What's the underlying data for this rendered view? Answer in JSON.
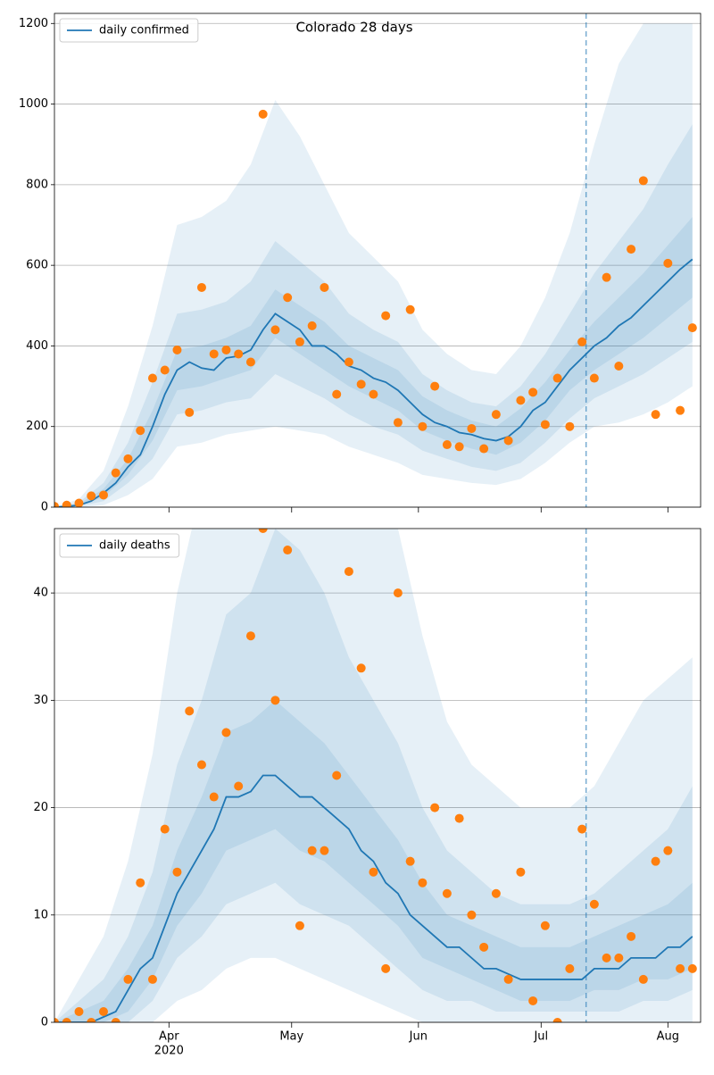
{
  "chart_data": [
    {
      "type": "line",
      "title": "Colorado 28 days",
      "x": [
        64,
        67,
        70,
        73,
        76,
        79,
        82,
        85,
        88,
        91,
        94,
        97,
        100,
        103,
        106,
        109,
        112,
        115,
        118,
        121,
        124,
        127,
        130,
        133,
        136,
        139,
        142,
        145,
        148,
        151,
        154,
        157,
        160,
        163,
        166,
        169,
        172,
        175,
        178,
        181,
        184,
        187,
        190,
        193,
        196,
        199,
        202,
        205,
        208,
        211,
        214,
        217,
        220
      ],
      "series": [
        {
          "name": "daily confirmed",
          "color": "#1f77b4",
          "values": [
            0,
            2,
            5,
            15,
            35,
            60,
            100,
            130,
            200,
            280,
            340,
            360,
            345,
            340,
            370,
            375,
            390,
            440,
            480,
            460,
            440,
            400,
            400,
            380,
            350,
            340,
            320,
            310,
            290,
            260,
            230,
            210,
            200,
            185,
            180,
            170,
            165,
            175,
            200,
            240,
            260,
            300,
            340,
            370,
            400,
            420,
            450,
            470,
            500,
            530,
            560,
            590,
            615
          ]
        }
      ],
      "points": {
        "color": "#ff7f0e",
        "values": [
          2,
          5,
          10,
          28,
          30,
          85,
          120,
          190,
          320,
          340,
          390,
          235,
          545,
          380,
          390,
          380,
          360,
          975,
          440,
          520,
          410,
          450,
          545,
          280,
          360,
          305,
          280,
          475,
          210,
          490,
          200,
          300,
          155,
          150,
          195,
          145,
          230,
          165,
          265,
          285,
          205,
          320,
          200,
          410,
          320,
          570,
          350,
          640,
          810,
          230,
          605,
          240,
          445
        ]
      },
      "band_x": [
        64,
        70,
        76,
        82,
        88,
        94,
        100,
        106,
        112,
        118,
        124,
        130,
        136,
        142,
        148,
        154,
        160,
        166,
        172,
        178,
        184,
        190,
        196,
        202,
        208,
        214,
        220
      ],
      "bands": [
        {
          "lo": [
            0,
            0,
            5,
            30,
            70,
            150,
            160,
            180,
            190,
            200,
            190,
            180,
            150,
            130,
            110,
            80,
            70,
            60,
            55,
            70,
            110,
            160,
            200,
            210,
            230,
            260,
            300
          ],
          "hi": [
            0,
            20,
            90,
            250,
            450,
            700,
            720,
            760,
            850,
            1010,
            920,
            800,
            680,
            620,
            560,
            440,
            380,
            340,
            330,
            400,
            520,
            680,
            900,
            1100,
            1200,
            1200,
            1200
          ]
        },
        {
          "lo": [
            0,
            2,
            15,
            60,
            120,
            230,
            240,
            260,
            270,
            330,
            300,
            270,
            230,
            200,
            180,
            140,
            120,
            100,
            90,
            110,
            160,
            220,
            270,
            300,
            330,
            370,
            410
          ],
          "hi": [
            0,
            12,
            60,
            160,
            310,
            480,
            490,
            510,
            560,
            660,
            610,
            560,
            480,
            440,
            410,
            330,
            290,
            260,
            250,
            300,
            380,
            480,
            580,
            660,
            740,
            850,
            950
          ]
        },
        {
          "lo": [
            0,
            3,
            25,
            80,
            165,
            290,
            300,
            320,
            340,
            420,
            380,
            340,
            300,
            270,
            240,
            190,
            165,
            145,
            130,
            160,
            215,
            290,
            340,
            380,
            420,
            470,
            520
          ],
          "hi": [
            0,
            8,
            45,
            120,
            240,
            390,
            400,
            420,
            450,
            540,
            500,
            460,
            400,
            370,
            340,
            275,
            240,
            215,
            200,
            245,
            310,
            390,
            460,
            520,
            580,
            650,
            720
          ]
        }
      ],
      "band_color": "#1f77b4",
      "forecast_start": 194,
      "xlim": [
        64,
        222
      ],
      "xticks": [
        92,
        122,
        153,
        183,
        214
      ],
      "ylim": [
        0,
        1225
      ],
      "yticks": [
        0,
        200,
        400,
        600,
        800,
        1000,
        1200
      ],
      "grid": true,
      "legend": "upper left"
    },
    {
      "type": "line",
      "x": [
        64,
        67,
        70,
        73,
        76,
        79,
        82,
        85,
        88,
        91,
        94,
        97,
        100,
        103,
        106,
        109,
        112,
        115,
        118,
        121,
        124,
        127,
        130,
        133,
        136,
        139,
        142,
        145,
        148,
        151,
        154,
        157,
        160,
        163,
        166,
        169,
        172,
        175,
        178,
        181,
        184,
        187,
        190,
        193,
        196,
        199,
        202,
        205,
        208,
        211,
        214,
        217,
        220
      ],
      "series": [
        {
          "name": "daily deaths",
          "color": "#1f77b4",
          "values": [
            0,
            0,
            0,
            0,
            0.5,
            1,
            3,
            5,
            6,
            9,
            12,
            14,
            16,
            18,
            21,
            21,
            21.5,
            23,
            23,
            22,
            21,
            21,
            20,
            19,
            18,
            16,
            15,
            13,
            12,
            10,
            9,
            8,
            7,
            7,
            6,
            5,
            5,
            4.5,
            4,
            4,
            4,
            4,
            4,
            4,
            5,
            5,
            5,
            6,
            6,
            6,
            7,
            7,
            8
          ]
        }
      ],
      "points": {
        "color": "#ff7f0e",
        "values": [
          0,
          0,
          1,
          0,
          1,
          0,
          4,
          13,
          4,
          18,
          14,
          29,
          24,
          21,
          27,
          22,
          36,
          46,
          30,
          44,
          9,
          16,
          16,
          23,
          42,
          33,
          14,
          5,
          40,
          15,
          13,
          20,
          12,
          19,
          10,
          7,
          12,
          4,
          14,
          2,
          9,
          0,
          5,
          18,
          11,
          6,
          6,
          8,
          4,
          15,
          16,
          5,
          5
        ]
      },
      "band_x": [
        64,
        70,
        76,
        82,
        88,
        94,
        100,
        106,
        112,
        118,
        124,
        130,
        136,
        142,
        148,
        154,
        160,
        166,
        172,
        178,
        184,
        190,
        196,
        202,
        208,
        214,
        220
      ],
      "bands": [
        {
          "lo": [
            0,
            0,
            0,
            0,
            0,
            2,
            3,
            5,
            6,
            6,
            5,
            4,
            3,
            2,
            1,
            0,
            0,
            0,
            0,
            0,
            0,
            0,
            0,
            0,
            0,
            0,
            0
          ],
          "hi": [
            0,
            4,
            8,
            15,
            25,
            40,
            50,
            60,
            62,
            65,
            62,
            58,
            54,
            50,
            46,
            36,
            28,
            24,
            22,
            20,
            20,
            20,
            22,
            26,
            30,
            32,
            34
          ]
        },
        {
          "lo": [
            0,
            0,
            0,
            0,
            2,
            6,
            8,
            11,
            12,
            13,
            11,
            10,
            9,
            7,
            5,
            3,
            2,
            2,
            1,
            1,
            1,
            1,
            1,
            1,
            2,
            2,
            3
          ],
          "hi": [
            0,
            2,
            4,
            8,
            14,
            24,
            30,
            38,
            40,
            46,
            44,
            40,
            34,
            30,
            26,
            20,
            16,
            14,
            12,
            11,
            11,
            11,
            12,
            14,
            16,
            18,
            22
          ]
        },
        {
          "lo": [
            0,
            0,
            0,
            1,
            4,
            9,
            12,
            16,
            17,
            18,
            16,
            15,
            13,
            11,
            9,
            6,
            5,
            4,
            3,
            2,
            2,
            2,
            3,
            3,
            4,
            4,
            5
          ],
          "hi": [
            0,
            1,
            2,
            5,
            9,
            16,
            21,
            27,
            28,
            30,
            28,
            26,
            23,
            20,
            17,
            13,
            10,
            9,
            8,
            7,
            7,
            7,
            8,
            9,
            10,
            11,
            13
          ]
        }
      ],
      "band_color": "#1f77b4",
      "forecast_start": 194,
      "xlim": [
        64,
        222
      ],
      "xticks": [
        {
          "value": 92,
          "label": "Apr"
        },
        {
          "value": 122,
          "label": "May"
        },
        {
          "value": 153,
          "label": "Jun"
        },
        {
          "value": 183,
          "label": "Jul"
        },
        {
          "value": 214,
          "label": "Aug"
        }
      ],
      "xtick_sublabel": "2020",
      "ylim": [
        0,
        46
      ],
      "yticks": [
        0,
        10,
        20,
        30,
        40
      ],
      "grid": true,
      "legend": "upper left"
    }
  ]
}
